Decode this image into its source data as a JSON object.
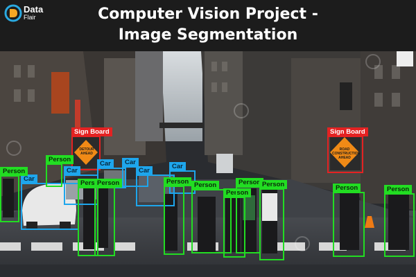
{
  "header": {
    "title_line1": "Computer Vision Project -",
    "title_line2": "Image Segmentation",
    "logo_line1": "Data",
    "logo_line2": "Flair"
  },
  "colors": {
    "person": "#22dd22",
    "car": "#1ea6ec",
    "sign": "#e42222",
    "header_bg": "#1c1c1c"
  },
  "labels": {
    "person": "Person",
    "car": "Car",
    "sign": "Sign Board"
  },
  "road_sign_text": {
    "left": "DETOUR AHEAD",
    "right": "ROAD CONSTRUCTION AHEAD"
  }
}
